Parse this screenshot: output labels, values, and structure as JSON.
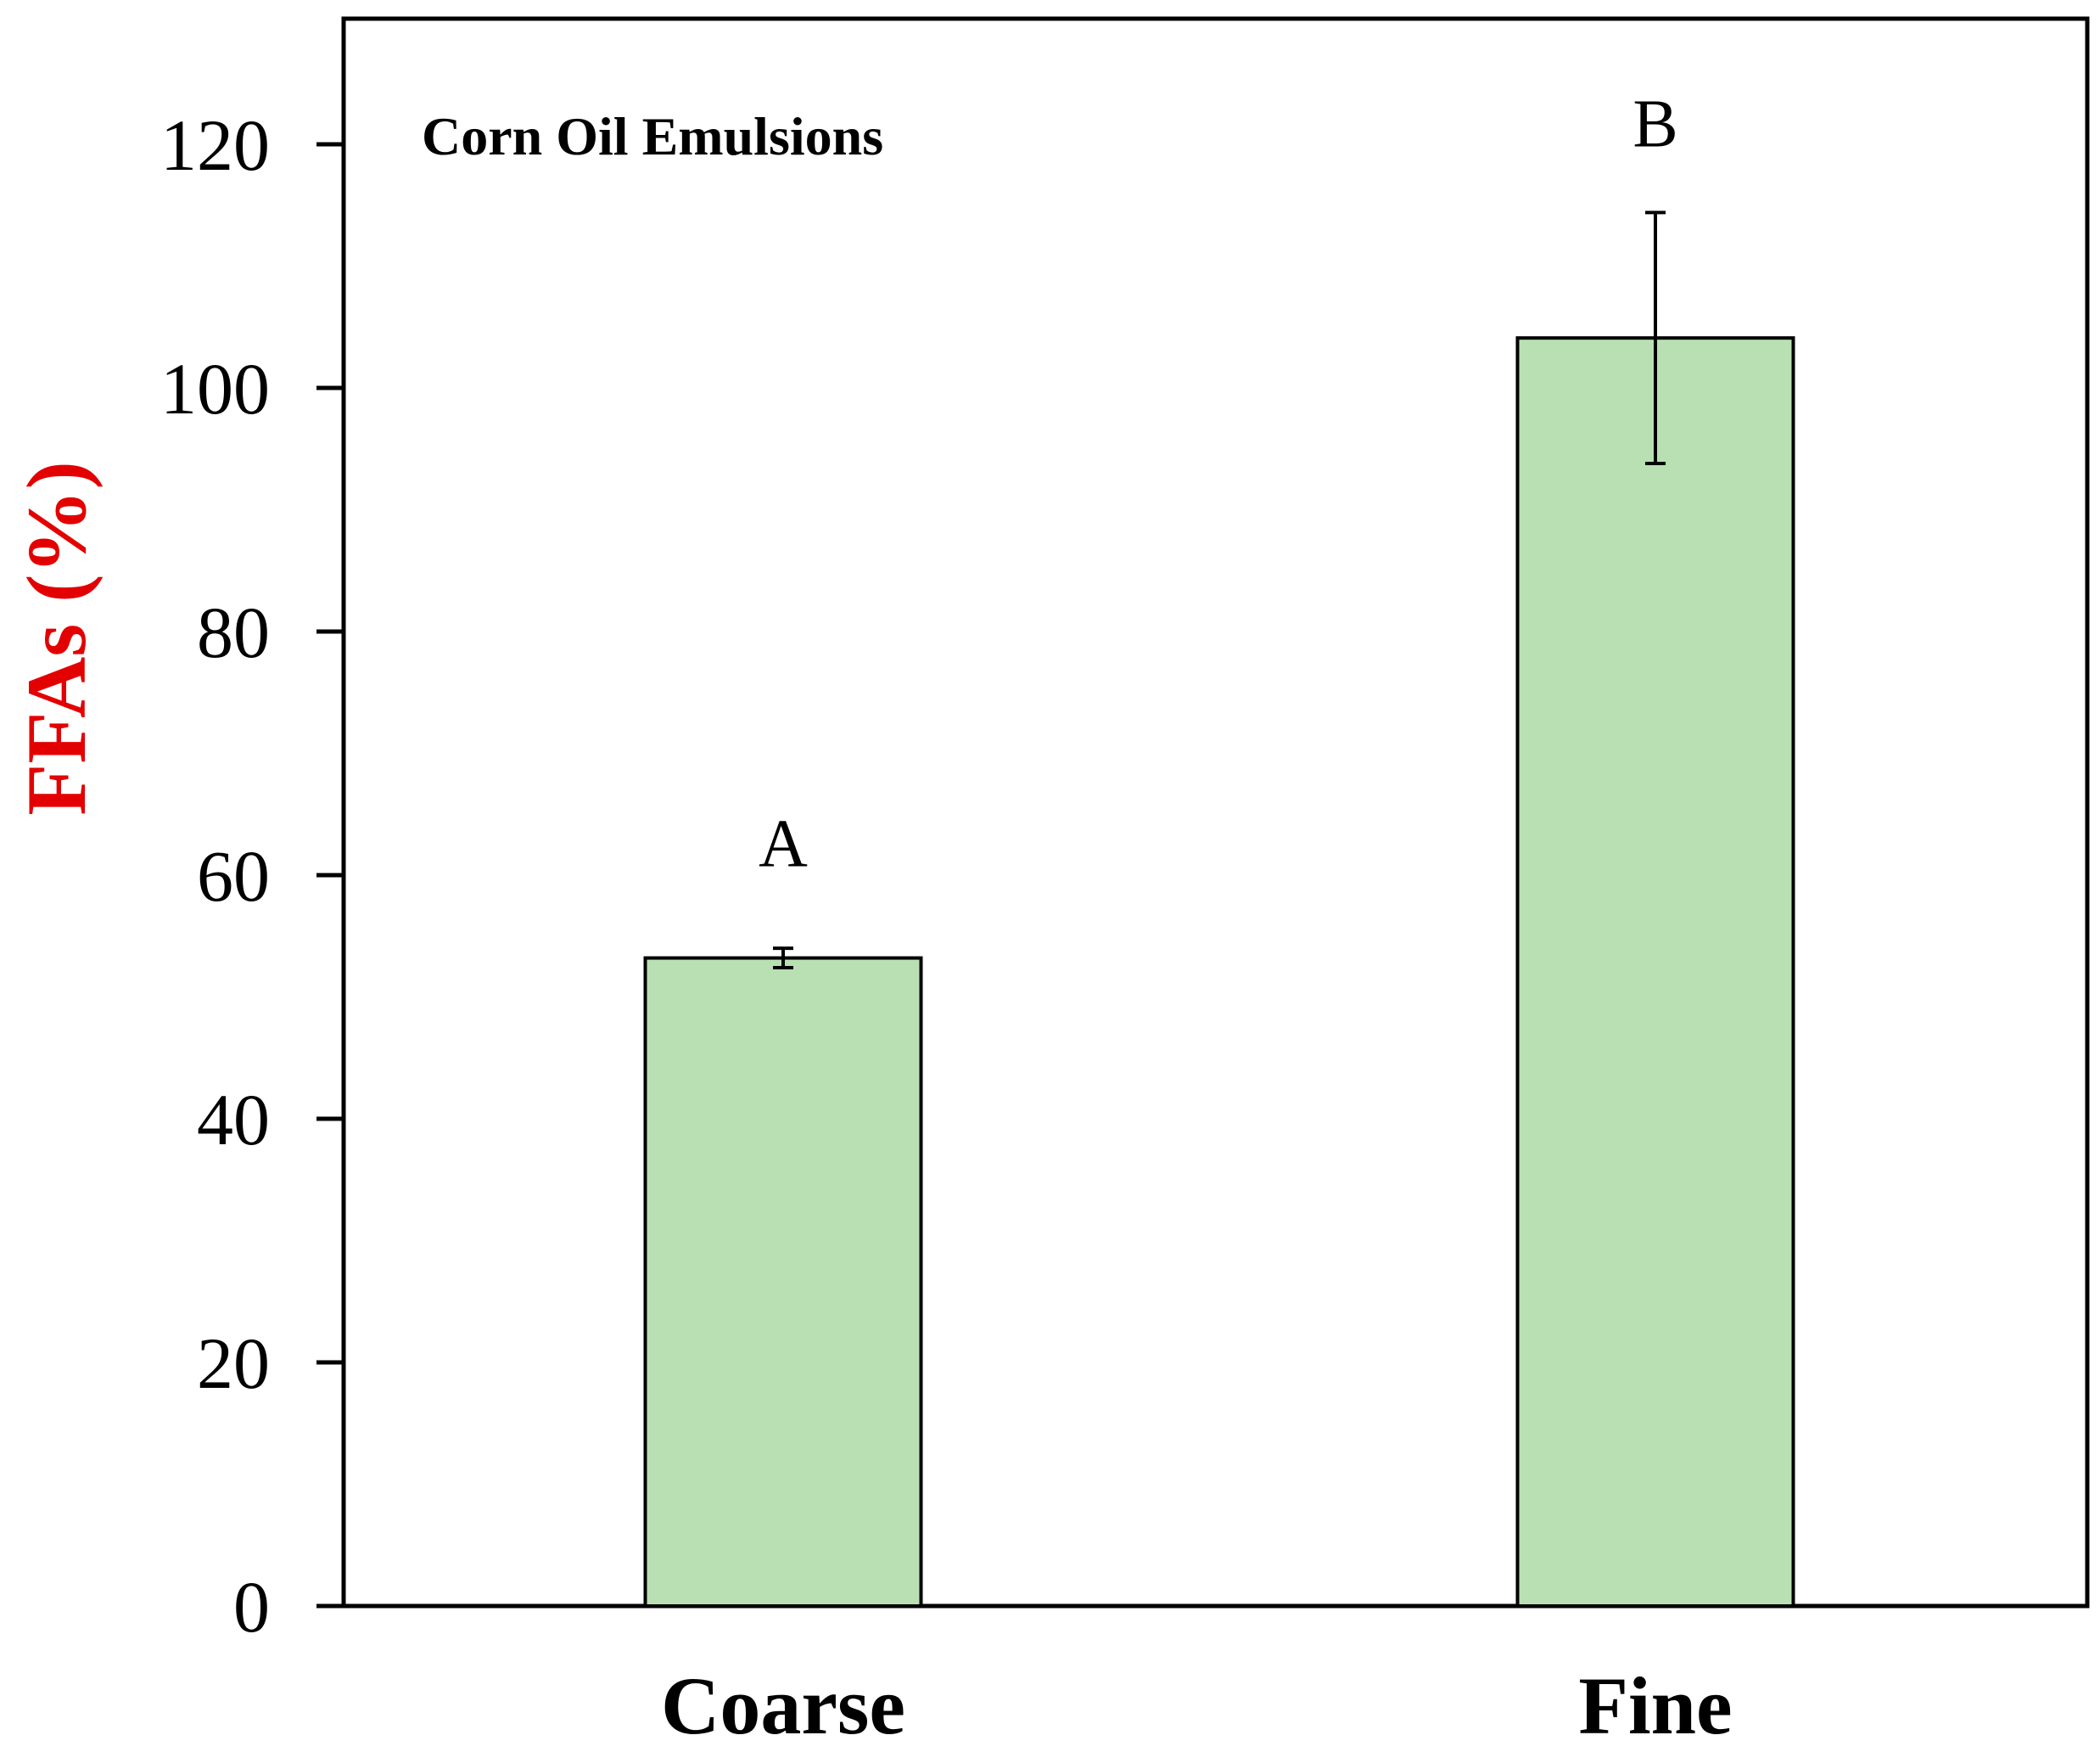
{
  "chart_data": {
    "type": "bar",
    "title": "Corn Oil Emulsions",
    "xlabel": "",
    "ylabel": "FFAs (%)",
    "categories": [
      "Coarse",
      "Fine"
    ],
    "values": [
      53.2,
      104.1
    ],
    "error": [
      0.8,
      10.3
    ],
    "significance_letters": [
      "A",
      "B"
    ],
    "ylim": [
      0,
      130
    ],
    "yticks": [
      0,
      20,
      40,
      60,
      80,
      100,
      120
    ],
    "grid": false,
    "legend": "none",
    "colors": {
      "bar_fill": "#b9e0b2",
      "bar_stroke": "#000000",
      "ylabel": "#e30000",
      "text": "#000000"
    }
  }
}
